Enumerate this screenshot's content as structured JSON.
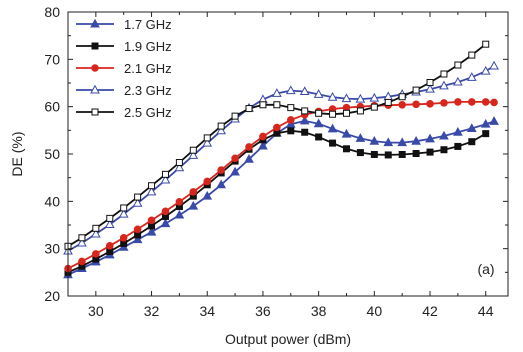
{
  "chart_data": {
    "type": "line",
    "title": "",
    "xlabel": "Output power (dBm)",
    "ylabel": "DE (%)",
    "xlim": [
      29,
      44.8
    ],
    "ylim": [
      20,
      80
    ],
    "xticks": [
      30,
      32,
      34,
      36,
      38,
      40,
      42,
      44
    ],
    "yticks": [
      20,
      30,
      40,
      50,
      60,
      70,
      80
    ],
    "grid": false,
    "legend_position": "top-left",
    "annotation": "(a)",
    "series": [
      {
        "name": "1.7 GHz",
        "color": "#3a4aa8",
        "marker": "filled-triangle",
        "x": [
          29.0,
          29.5,
          30.0,
          30.5,
          31.0,
          31.5,
          32.0,
          32.5,
          33.0,
          33.5,
          34.0,
          34.5,
          35.0,
          35.5,
          36.0,
          36.5,
          37.0,
          37.5,
          38.0,
          38.5,
          39.0,
          39.5,
          40.0,
          40.5,
          41.0,
          41.5,
          42.0,
          42.5,
          43.0,
          43.5,
          44.0,
          44.3
        ],
        "y": [
          24.5,
          25.8,
          27.2,
          28.7,
          30.3,
          31.9,
          33.5,
          35.3,
          37.1,
          39.0,
          41.1,
          43.5,
          46.2,
          48.9,
          51.7,
          54.4,
          56.3,
          57.0,
          56.4,
          55.3,
          54.2,
          53.3,
          52.7,
          52.4,
          52.4,
          52.7,
          53.2,
          53.8,
          54.6,
          55.4,
          56.3,
          56.9
        ]
      },
      {
        "name": "1.9 GHz",
        "color": "#111111",
        "marker": "filled-square",
        "x": [
          29.0,
          29.5,
          30.0,
          30.5,
          31.0,
          31.5,
          32.0,
          32.5,
          33.0,
          33.5,
          34.0,
          34.5,
          35.0,
          35.5,
          36.0,
          36.5,
          37.0,
          37.5,
          38.0,
          38.5,
          39.0,
          39.5,
          40.0,
          40.5,
          41.0,
          41.5,
          42.0,
          42.5,
          43.0,
          43.5,
          44.0
        ],
        "y": [
          25.0,
          26.3,
          27.8,
          29.4,
          31.1,
          32.9,
          34.8,
          36.8,
          38.9,
          41.1,
          43.5,
          46.0,
          48.5,
          51.0,
          53.0,
          54.4,
          54.9,
          54.6,
          53.6,
          52.3,
          51.1,
          50.3,
          49.9,
          49.8,
          49.9,
          50.1,
          50.4,
          50.9,
          51.6,
          52.6,
          54.3
        ]
      },
      {
        "name": "2.1 GHz",
        "color": "#d7261e",
        "marker": "filled-circle",
        "x": [
          29.0,
          29.5,
          30.0,
          30.5,
          31.0,
          31.5,
          32.0,
          32.5,
          33.0,
          33.5,
          34.0,
          34.5,
          35.0,
          35.5,
          36.0,
          36.5,
          37.0,
          37.5,
          38.0,
          38.5,
          39.0,
          39.5,
          40.0,
          40.5,
          41.0,
          41.5,
          42.0,
          42.5,
          43.0,
          43.5,
          44.0,
          44.3
        ],
        "y": [
          25.8,
          27.3,
          28.9,
          30.6,
          32.3,
          34.1,
          36.0,
          37.9,
          39.9,
          42.0,
          44.2,
          46.6,
          49.1,
          51.5,
          53.7,
          55.6,
          57.2,
          58.3,
          59.0,
          59.5,
          59.8,
          60.0,
          60.2,
          60.3,
          60.4,
          60.5,
          60.6,
          60.8,
          61.0,
          61.0,
          61.0,
          60.9
        ]
      },
      {
        "name": "2.3 GHz",
        "color": "#3a4aa8",
        "marker": "open-triangle",
        "x": [
          29.0,
          29.5,
          30.0,
          30.5,
          31.0,
          31.5,
          32.0,
          32.5,
          33.0,
          33.5,
          34.0,
          34.5,
          35.0,
          35.5,
          36.0,
          36.5,
          37.0,
          37.5,
          38.0,
          38.5,
          39.0,
          39.5,
          40.0,
          40.5,
          41.0,
          41.5,
          42.0,
          42.5,
          43.0,
          43.5,
          44.0,
          44.3
        ],
        "y": [
          29.5,
          31.2,
          33.1,
          35.1,
          37.3,
          39.6,
          42.0,
          44.5,
          47.1,
          49.7,
          52.3,
          54.9,
          57.4,
          59.7,
          61.5,
          62.8,
          63.4,
          63.2,
          62.6,
          62.0,
          61.7,
          61.6,
          61.8,
          62.1,
          62.6,
          63.1,
          63.7,
          64.4,
          65.2,
          66.2,
          67.5,
          68.6
        ]
      },
      {
        "name": "2.5 GHz",
        "color": "#111111",
        "marker": "open-square",
        "x": [
          29.0,
          29.5,
          30.0,
          30.5,
          31.0,
          31.5,
          32.0,
          32.5,
          33.0,
          33.5,
          34.0,
          34.5,
          35.0,
          35.5,
          36.0,
          36.5,
          37.0,
          37.5,
          38.0,
          38.5,
          39.0,
          39.5,
          40.0,
          40.5,
          41.0,
          41.5,
          42.0,
          42.5,
          43.0,
          43.5,
          44.0
        ],
        "y": [
          30.5,
          32.3,
          34.3,
          36.4,
          38.6,
          40.9,
          43.3,
          45.7,
          48.2,
          50.8,
          53.4,
          55.9,
          58.0,
          59.6,
          60.4,
          60.4,
          59.8,
          59.1,
          58.6,
          58.4,
          58.6,
          59.1,
          59.9,
          60.9,
          62.1,
          63.5,
          65.1,
          66.9,
          68.8,
          70.9,
          73.2
        ]
      }
    ]
  }
}
